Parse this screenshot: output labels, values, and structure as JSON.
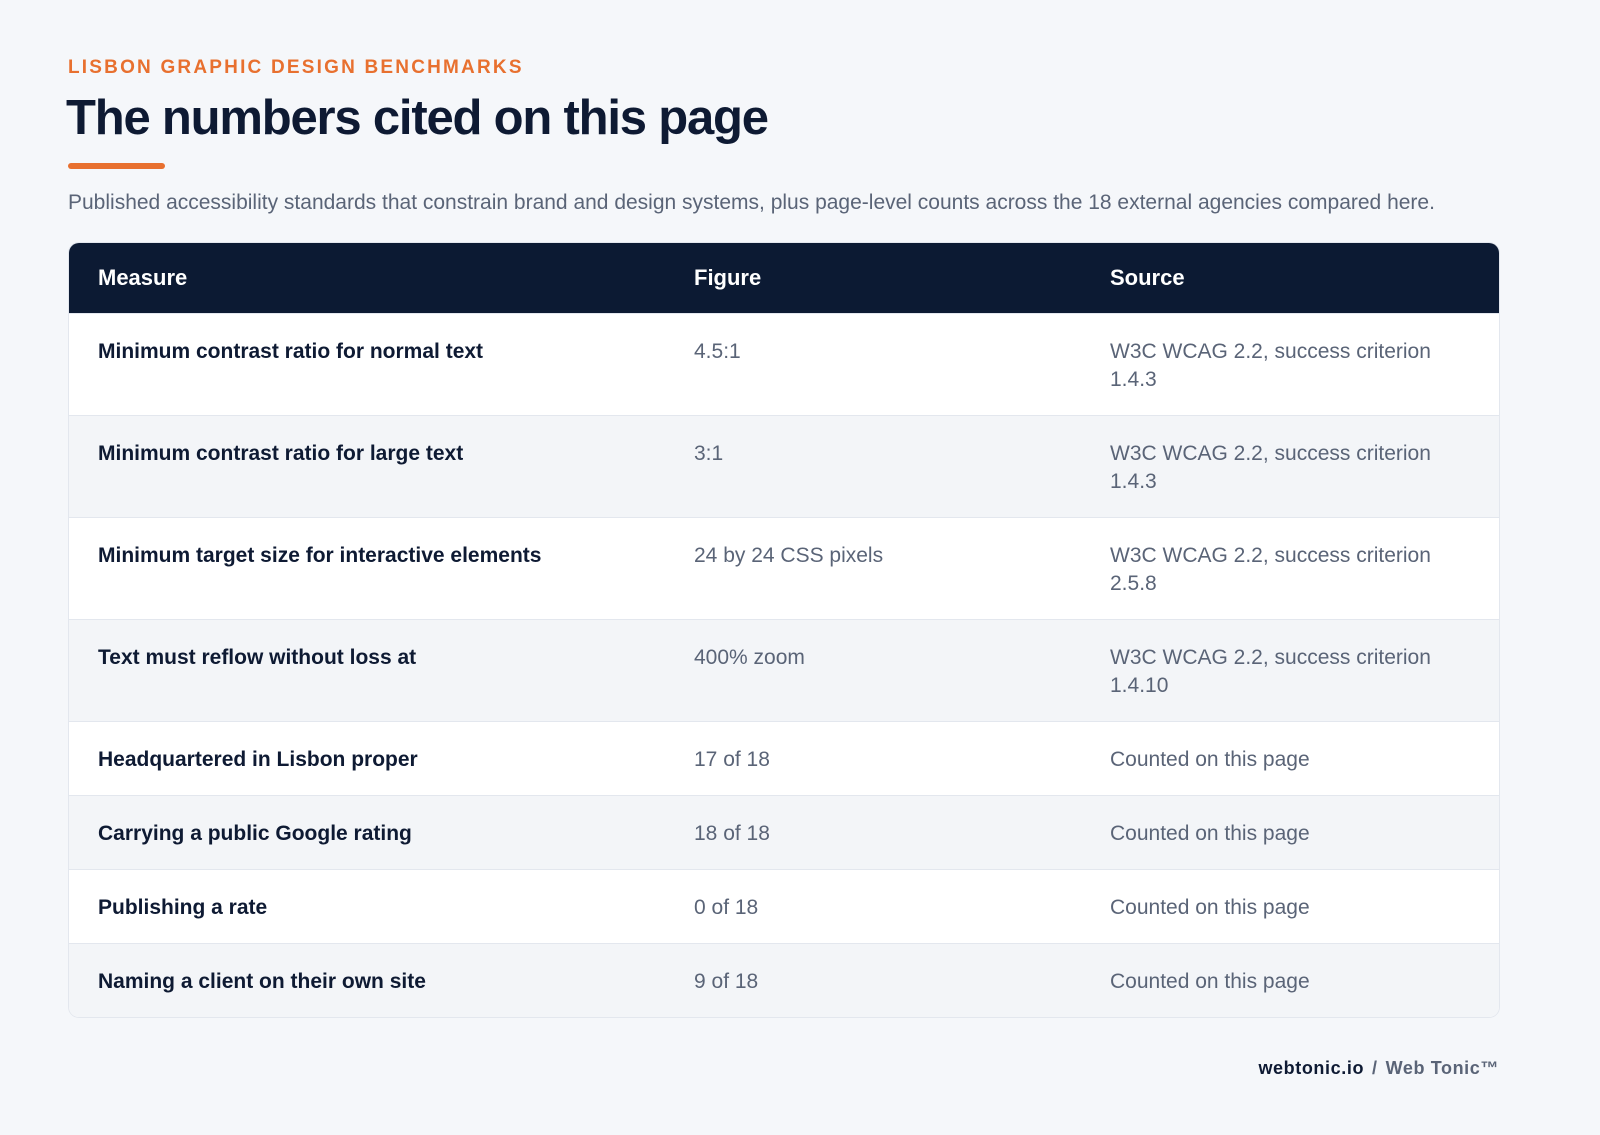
{
  "header": {
    "eyebrow": "LISBON GRAPHIC DESIGN BENCHMARKS",
    "title": "The numbers cited on this page",
    "subtitle": "Published accessibility standards that constrain brand and design systems, plus page-level counts across the 18 external agencies compared here."
  },
  "table": {
    "columns": [
      "Measure",
      "Figure",
      "Source"
    ],
    "rows": [
      [
        "Minimum contrast ratio for normal text",
        "4.5:1",
        "W3C WCAG 2.2, success criterion 1.4.3"
      ],
      [
        "Minimum contrast ratio for large text",
        "3:1",
        "W3C WCAG 2.2, success criterion 1.4.3"
      ],
      [
        "Minimum target size for interactive elements",
        "24 by 24 CSS pixels",
        "W3C WCAG 2.2, success criterion 2.5.8"
      ],
      [
        "Text must reflow without loss at",
        "400% zoom",
        "W3C WCAG 2.2, success criterion 1.4.10"
      ],
      [
        "Headquartered in Lisbon proper",
        "17 of 18",
        "Counted on this page"
      ],
      [
        "Carrying a public Google rating",
        "18 of 18",
        "Counted on this page"
      ],
      [
        "Publishing a rate",
        "0 of 18",
        "Counted on this page"
      ],
      [
        "Naming a client on their own site",
        "9 of 18",
        "Counted on this page"
      ]
    ]
  },
  "footer": {
    "site": "webtonic.io",
    "separator": "/",
    "brand": "Web Tonic™"
  }
}
